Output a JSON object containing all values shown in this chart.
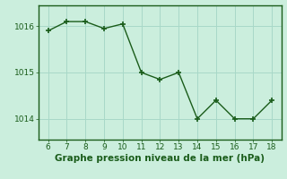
{
  "x": [
    6,
    7,
    8,
    9,
    10,
    11,
    12,
    13,
    14,
    15,
    16,
    17,
    18
  ],
  "y": [
    1015.9,
    1016.1,
    1016.1,
    1015.95,
    1016.05,
    1015.0,
    1014.85,
    1015.0,
    1014.0,
    1014.4,
    1014.0,
    1014.0,
    1014.4
  ],
  "line_color": "#1a5c1a",
  "marker": "+",
  "background_color": "#cbeedd",
  "grid_color": "#a8d8c8",
  "xlabel": "Graphe pression niveau de la mer (hPa)",
  "xlabel_color": "#1a5c1a",
  "tick_color": "#1a5c1a",
  "spine_color": "#1a5c1a",
  "xlim": [
    5.5,
    18.5
  ],
  "ylim": [
    1013.55,
    1016.45
  ],
  "yticks": [
    1014,
    1015,
    1016
  ],
  "xticks": [
    6,
    7,
    8,
    9,
    10,
    11,
    12,
    13,
    14,
    15,
    16,
    17,
    18
  ],
  "axis_fontsize": 6.5,
  "xlabel_fontsize": 7.5,
  "linewidth": 1.0,
  "markersize": 4,
  "markeredgewidth": 1.2
}
